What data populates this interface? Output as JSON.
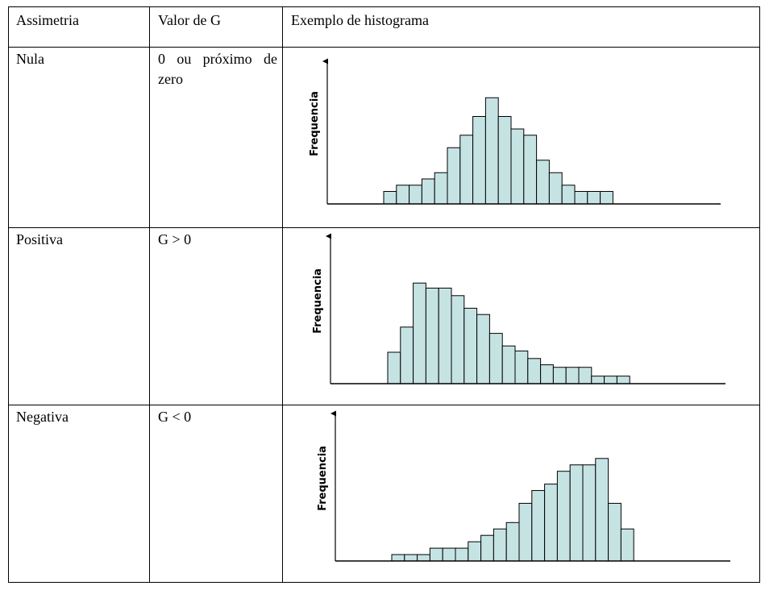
{
  "table": {
    "headers": [
      "Assimetria",
      "Valor de G",
      "Exemplo de histograma"
    ],
    "rows": [
      {
        "assimetria": "Nula",
        "valor": "0 ou próximo de zero"
      },
      {
        "assimetria": "Positiva",
        "valor": "G > 0"
      },
      {
        "assimetria": "Negativa",
        "valor": "G < 0"
      }
    ]
  },
  "chart_data": [
    {
      "type": "bar",
      "ylabel": "Frequencia",
      "values": [
        1,
        1.5,
        1.5,
        2,
        2.5,
        4.5,
        5.5,
        7,
        8.5,
        7,
        6,
        5.5,
        3.5,
        2.5,
        1.5,
        1,
        1,
        1
      ],
      "bar_fill": "#c6e3e4",
      "bar_stroke": "#000000"
    },
    {
      "type": "bar",
      "ylabel": "Frequencia",
      "values": [
        2.5,
        4.5,
        8,
        7.6,
        7.6,
        7,
        6,
        5.5,
        4,
        3,
        2.6,
        2,
        1.5,
        1.3,
        1.3,
        1.3,
        0.6,
        0.6,
        0.6
      ],
      "bar_fill": "#c6e3e4",
      "bar_stroke": "#000000"
    },
    {
      "type": "bar",
      "ylabel": "Frequencia",
      "values": [
        0.5,
        0.5,
        0.5,
        1,
        1,
        1,
        1.5,
        2,
        2.5,
        3,
        4.5,
        5.5,
        6,
        7,
        7.5,
        7.5,
        8,
        4.5,
        2.5
      ],
      "bar_fill": "#c6e3e4",
      "bar_stroke": "#000000"
    }
  ]
}
